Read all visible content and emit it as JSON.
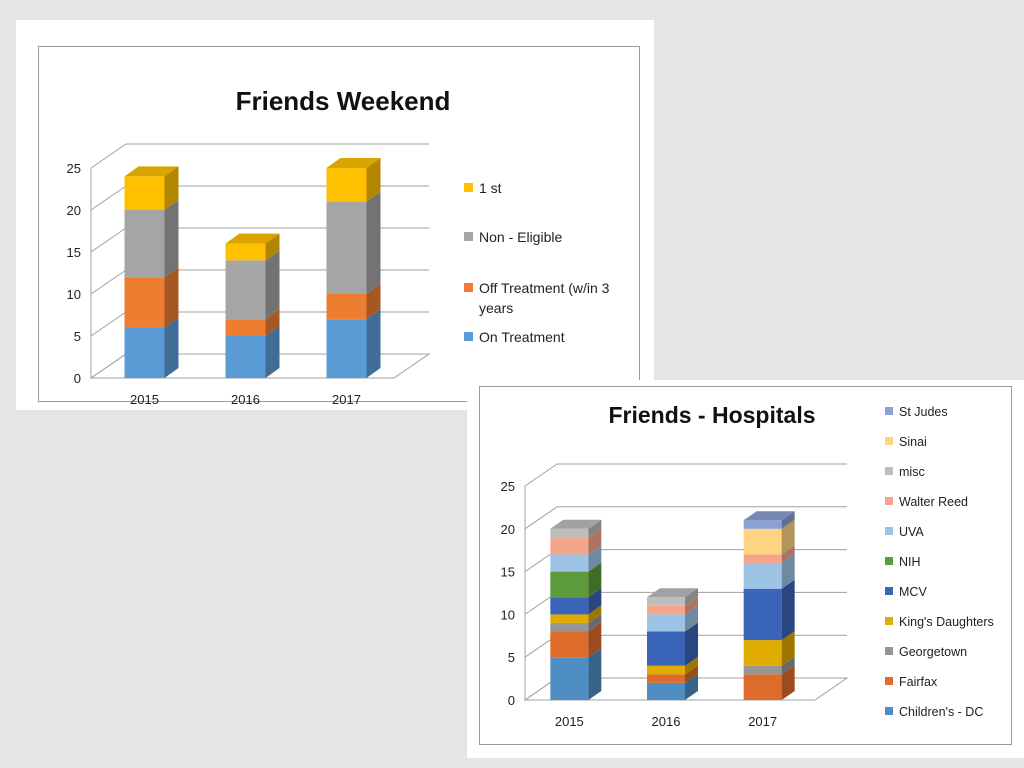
{
  "chart_data": [
    {
      "type": "bar",
      "stacked": true,
      "title": "Friends Weekend",
      "categories": [
        "2015",
        "2016",
        "2017"
      ],
      "ylim": [
        0,
        25
      ],
      "yticks": [
        "0",
        "5",
        "10",
        "15",
        "20",
        "25"
      ],
      "grid": true,
      "legend_position": "right",
      "legend_order": [
        "1 st",
        "Non - Eligible",
        "Off Treatment (w/in 3 years",
        "On Treatment"
      ],
      "series": [
        {
          "name": "On Treatment",
          "color": "#5b9bd5",
          "values": [
            6,
            5,
            7
          ]
        },
        {
          "name": "Off Treatment (w/in 3 years",
          "color": "#ed7d31",
          "values": [
            6,
            2,
            3
          ]
        },
        {
          "name": "Non - Eligible",
          "color": "#a5a5a5",
          "values": [
            8,
            7,
            11
          ]
        },
        {
          "name": "1 st",
          "color": "#ffc000",
          "values": [
            4,
            2,
            4
          ]
        }
      ]
    },
    {
      "type": "bar",
      "stacked": true,
      "title": "Friends - Hospitals",
      "categories": [
        "2015",
        "2016",
        "2017"
      ],
      "ylim": [
        0,
        25
      ],
      "yticks": [
        "0",
        "5",
        "10",
        "15",
        "20",
        "25"
      ],
      "grid": true,
      "legend_position": "right",
      "legend_order": [
        "St Judes",
        "Sinai",
        "misc",
        "Walter Reed",
        "UVA",
        "NIH",
        "MCV",
        "King's Daughters",
        "Georgetown",
        "Fairfax",
        "Children's - DC"
      ],
      "series": [
        {
          "name": "Children's - DC",
          "color": "#4f8ec4",
          "values": [
            5,
            2,
            0
          ]
        },
        {
          "name": "Fairfax",
          "color": "#dd6b2a",
          "values": [
            3,
            1,
            3
          ]
        },
        {
          "name": "Georgetown",
          "color": "#969696",
          "values": [
            1,
            0,
            1
          ]
        },
        {
          "name": "King's Daughters",
          "color": "#e0ac00",
          "values": [
            1,
            1,
            3
          ]
        },
        {
          "name": "MCV",
          "color": "#3a64b8",
          "values": [
            2,
            4,
            6
          ]
        },
        {
          "name": "NIH",
          "color": "#5c9a3c",
          "values": [
            3,
            0,
            0
          ]
        },
        {
          "name": "UVA",
          "color": "#9dc3e6",
          "values": [
            2,
            2,
            3
          ]
        },
        {
          "name": "Walter Reed",
          "color": "#f4a68c",
          "values": [
            2,
            1,
            1
          ]
        },
        {
          "name": "misc",
          "color": "#bdbdbd",
          "values": [
            1,
            1,
            0
          ]
        },
        {
          "name": "Sinai",
          "color": "#ffd382",
          "values": [
            0,
            0,
            3
          ]
        },
        {
          "name": "St Judes",
          "color": "#8aa0d6",
          "values": [
            0,
            0,
            1
          ]
        }
      ]
    }
  ]
}
